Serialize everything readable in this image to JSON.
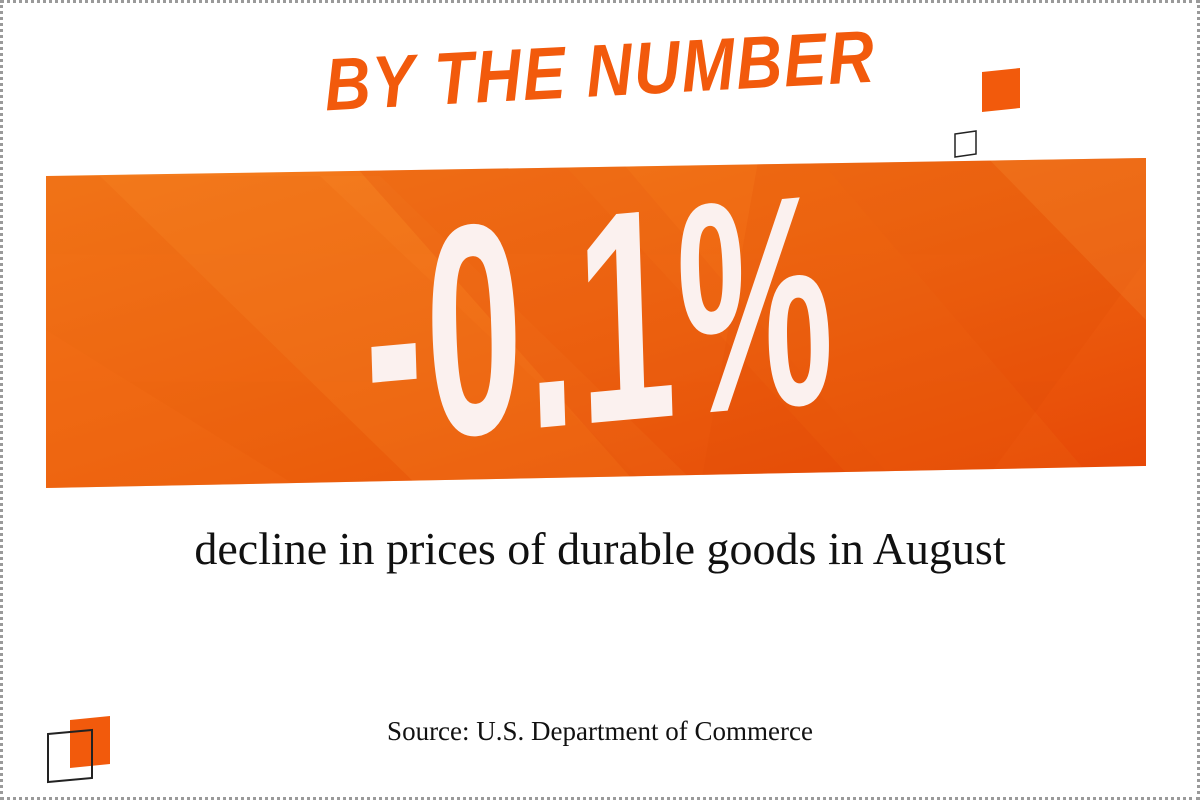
{
  "header": {
    "title": "BY THE NUMBER"
  },
  "stat": {
    "value": "-0.1%",
    "caption": "decline in prices of durable goods in August"
  },
  "footer": {
    "source": "Source: U.S. Department of Commerce"
  },
  "colors": {
    "accent": "#f25a0c",
    "banner_light": "#f47a1a",
    "banner_dark": "#e84c06",
    "number_text": "#fbf1ef",
    "body_text": "#111111",
    "frame_border": "#9a9a9a"
  }
}
